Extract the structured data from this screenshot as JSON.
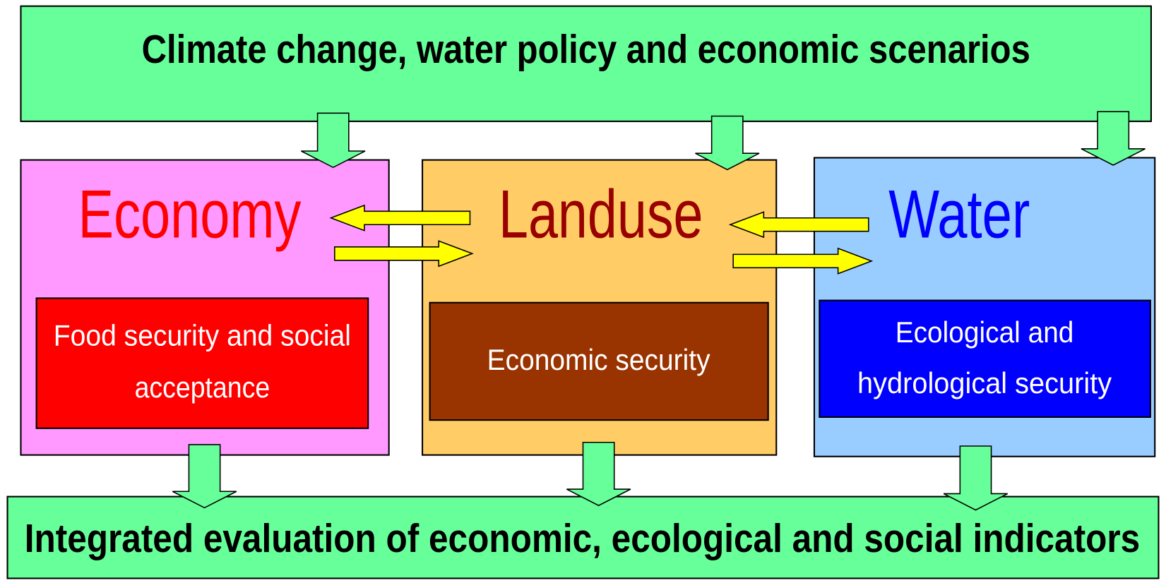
{
  "header": {
    "title": "Climate change, water policy and economic scenarios"
  },
  "panels": [
    {
      "title": "Economy",
      "subtitle": [
        "Food security and social",
        "acceptance"
      ]
    },
    {
      "title": "Landuse",
      "subtitle": [
        "Economic security"
      ]
    },
    {
      "title": "Water",
      "subtitle": [
        "Ecological and",
        "hydrological security"
      ]
    }
  ],
  "footer": {
    "title": "Integrated evaluation of economic, ecological and social indicators"
  }
}
